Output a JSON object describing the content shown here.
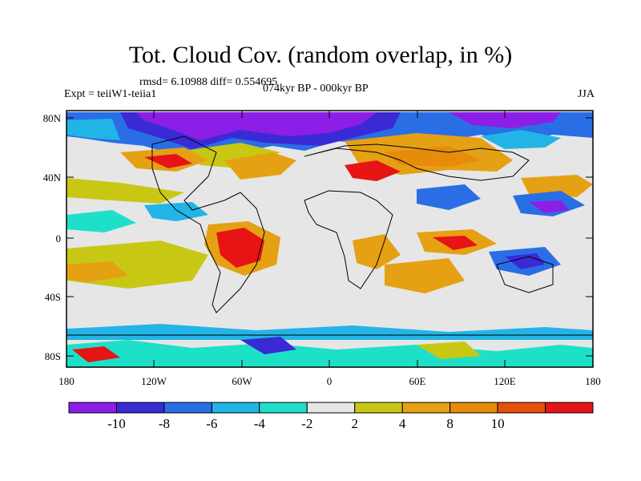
{
  "title": "Tot. Cloud Cov. (random overlap, in %)",
  "stats": "rmsd= 6.10988 diff= 0.554695",
  "experiment": "Expt = teiiW1-teiia1",
  "period": "074kyr BP - 000kyr BP",
  "season": "JJA",
  "lat_labels": [
    "80N",
    "40N",
    "0",
    "40S",
    "80S"
  ],
  "lon_labels": [
    "180",
    "120W",
    "60W",
    "0",
    "60E",
    "120E",
    "180"
  ],
  "colorbar": {
    "labels": [
      "-10",
      "-8",
      "-6",
      "-4",
      "-2",
      "2",
      "4",
      "8",
      "10"
    ],
    "colors": [
      "#8d1ee6",
      "#3a2ad6",
      "#2a6ee6",
      "#22b4e6",
      "#1ee0c8",
      "#e6e6e6",
      "#c8c814",
      "#e6a014",
      "#e68c0a",
      "#e6500a",
      "#e61414"
    ]
  }
}
